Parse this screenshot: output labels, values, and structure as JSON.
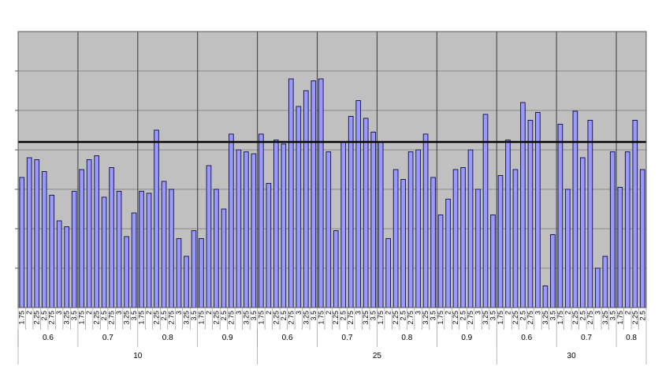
{
  "chart_data": {
    "type": "bar",
    "title": "",
    "xlabel": "",
    "ylabel": "",
    "grid": true,
    "legend": "none",
    "ylim": [
      0,
      7
    ],
    "reference_line": 4.2,
    "colors": {
      "plot_bg": "#c0c0c0",
      "bar_fill": "#9999ff",
      "bar_stroke": "#1c1c50",
      "grid": "#8a8a8a",
      "reference_line": "#000000",
      "outer_bg": "#ffffff"
    },
    "tick_labels": [
      "1.75",
      "2",
      "2.25",
      "2.5",
      "2.75",
      "3",
      "3.25",
      "3.5"
    ],
    "level2_labels": [
      "0.6",
      "0.7",
      "0.8",
      "0.9"
    ],
    "level3_labels": [
      "10",
      "25",
      "30"
    ],
    "values": [
      3.3,
      3.8,
      3.75,
      3.45,
      2.85,
      2.2,
      2.05,
      2.95,
      3.5,
      3.75,
      3.85,
      2.8,
      3.55,
      2.95,
      1.8,
      2.4,
      2.95,
      2.9,
      4.5,
      3.2,
      3.0,
      1.75,
      1.3,
      1.95,
      1.75,
      3.6,
      3.0,
      2.5,
      4.4,
      4.0,
      3.95,
      3.9,
      4.4,
      3.15,
      4.25,
      4.15,
      5.8,
      5.1,
      5.5,
      5.75,
      5.8,
      3.95,
      1.95,
      4.2,
      4.85,
      5.25,
      4.8,
      4.45,
      4.2,
      1.75,
      3.5,
      3.25,
      3.95,
      4.0,
      4.4,
      3.3,
      2.35,
      2.75,
      3.5,
      3.55,
      4.0,
      3.0,
      4.9,
      2.35,
      3.35,
      4.25,
      3.5,
      5.2,
      4.75,
      4.95,
      0.55,
      1.85,
      4.65,
      3.0,
      4.98,
      3.8,
      4.75,
      1.0,
      1.3,
      3.95,
      3.05,
      3.95,
      4.75,
      3.5
    ]
  }
}
